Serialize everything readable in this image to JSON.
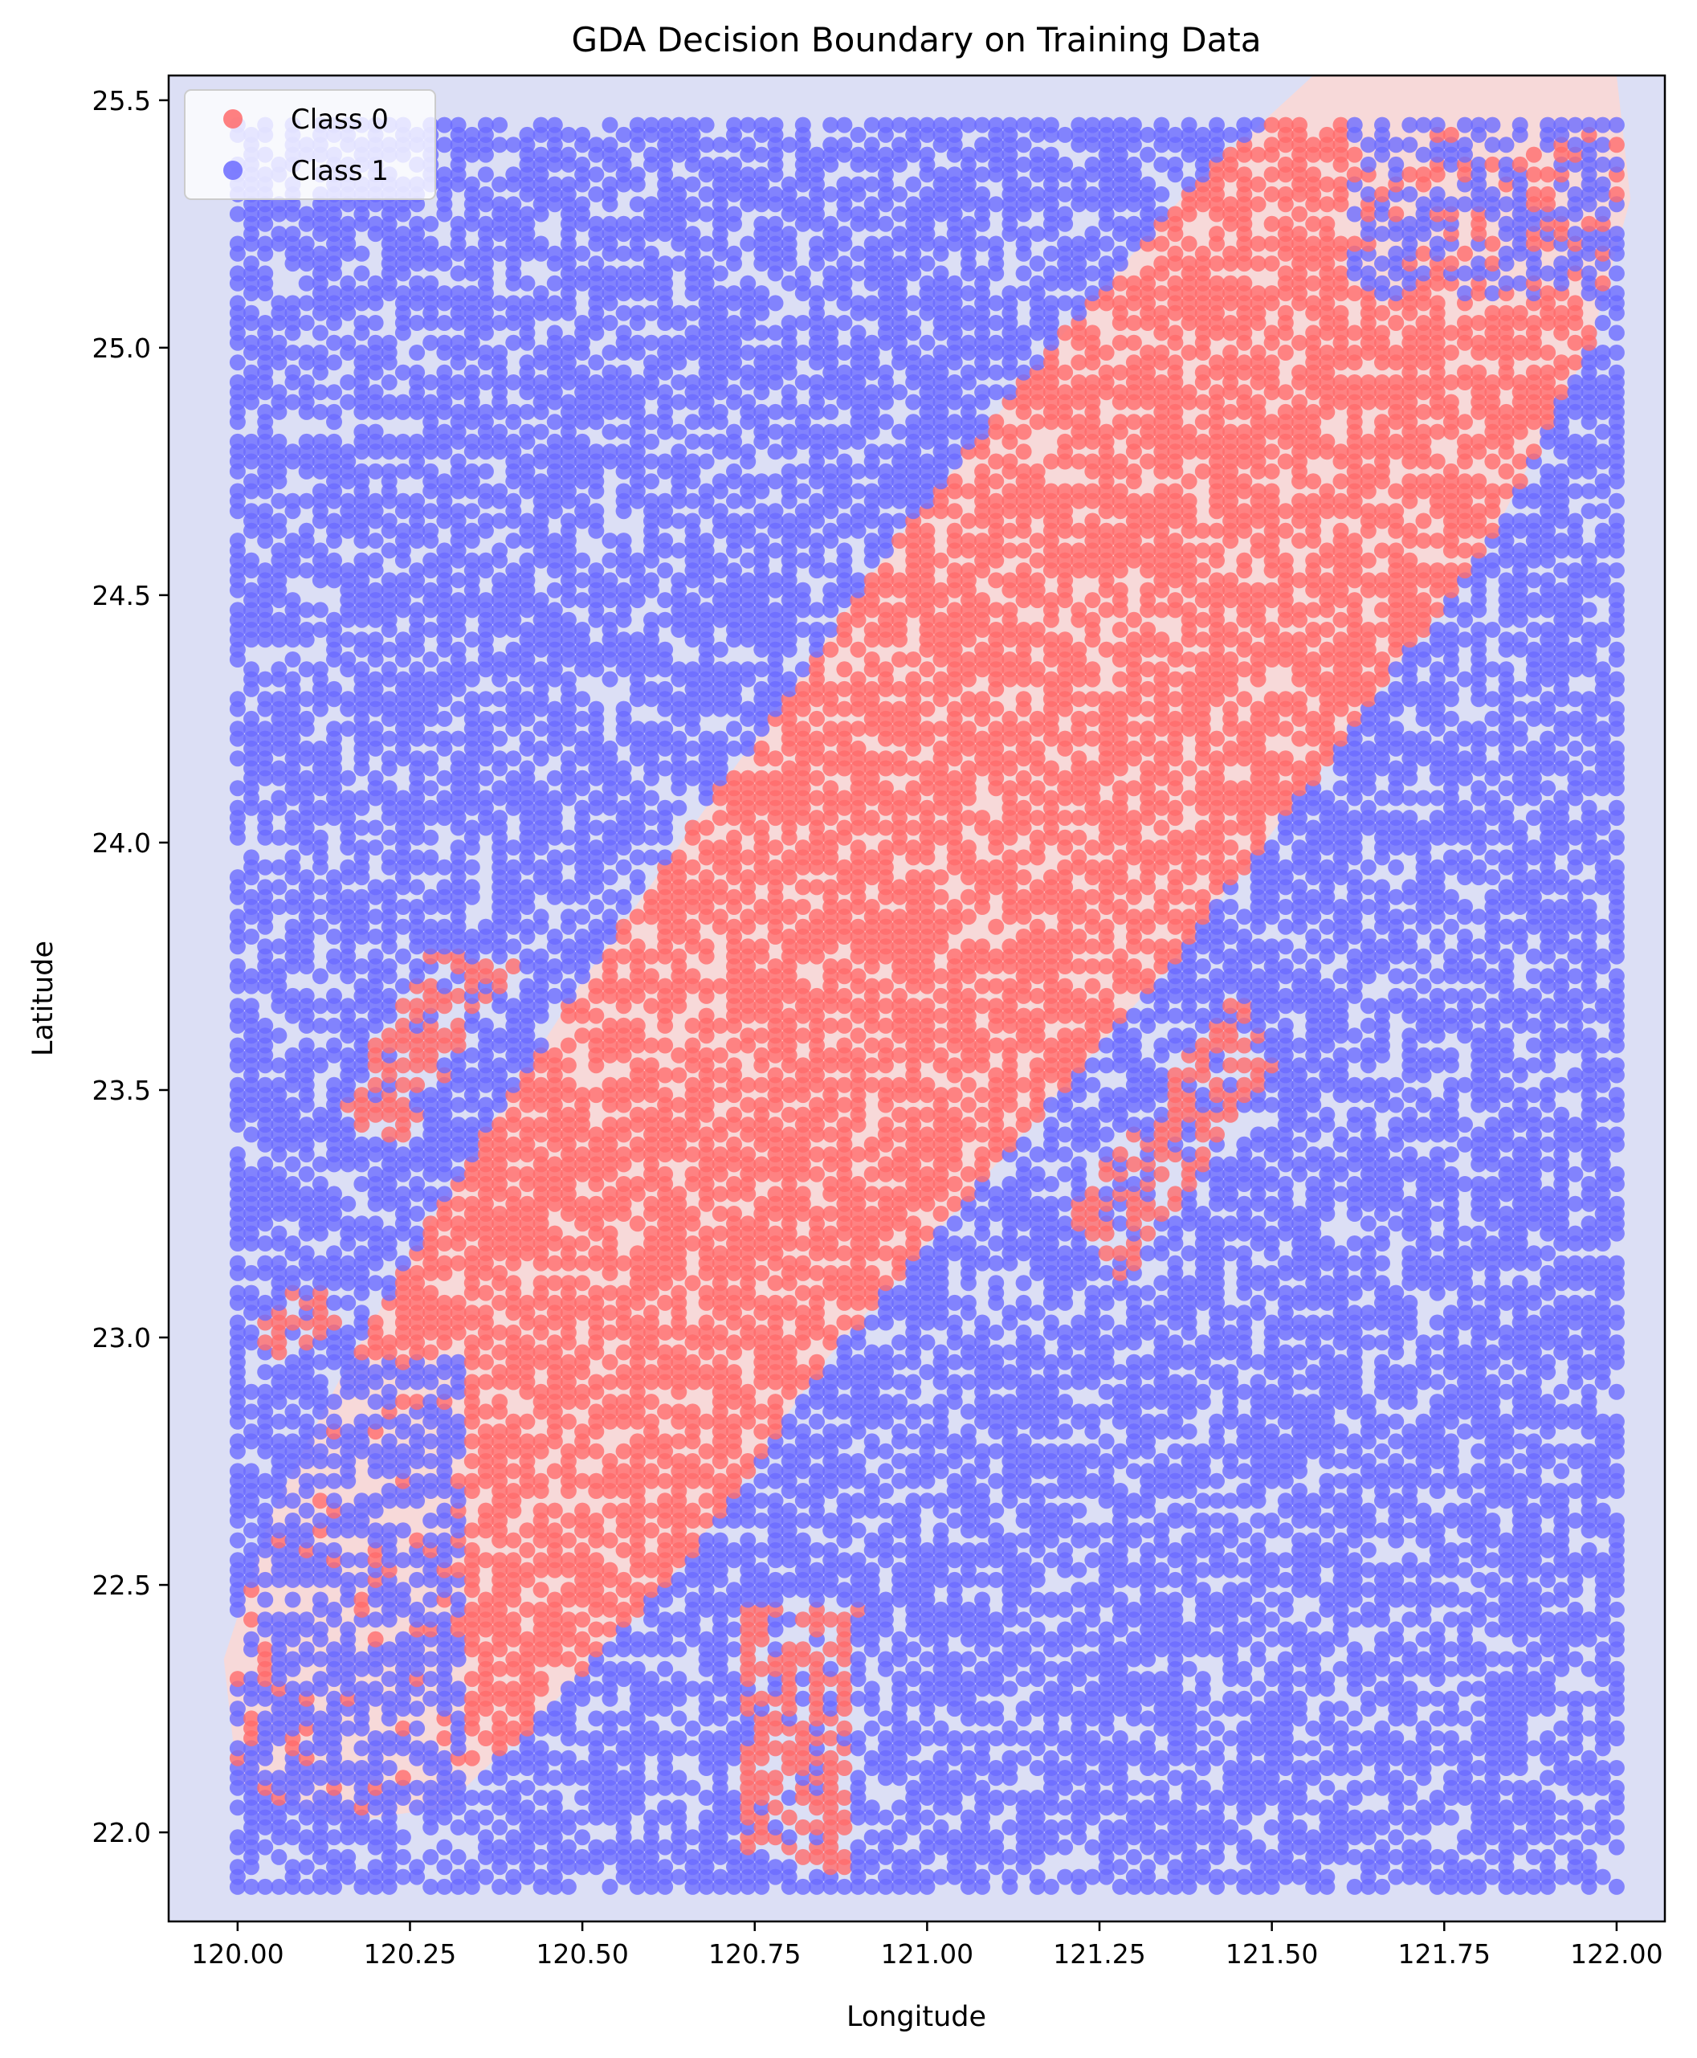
{
  "chart_data": {
    "type": "scatter",
    "title": "GDA Decision Boundary on Training Data",
    "xlabel": "Longitude",
    "ylabel": "Latitude",
    "xlim": [
      119.9,
      122.07
    ],
    "ylim": [
      21.82,
      25.55
    ],
    "xticks": [
      120.0,
      120.25,
      120.5,
      120.75,
      121.0,
      121.25,
      121.5,
      121.75,
      122.0
    ],
    "xtick_labels": [
      "120.00",
      "120.25",
      "120.50",
      "120.75",
      "121.00",
      "121.25",
      "121.50",
      "121.75",
      "122.00"
    ],
    "yticks": [
      22.0,
      22.5,
      23.0,
      23.5,
      24.0,
      24.5,
      25.0,
      25.5
    ],
    "ytick_labels": [
      "22.0",
      "22.5",
      "23.0",
      "23.5",
      "24.0",
      "24.5",
      "25.0",
      "25.5"
    ],
    "grid": false,
    "legend": {
      "placement": "upper-left",
      "entries": [
        "Class 0",
        "Class 1"
      ]
    },
    "colors": {
      "class0_point": "#ff6b6b",
      "class1_point": "#6b6bff",
      "class0_region": "#f7d9d9",
      "class1_region": "#dcdff5"
    },
    "decision_region": {
      "class0_region_polygon": [
        [
          121.56,
          25.55
        ],
        [
          122.0,
          25.55
        ],
        [
          122.02,
          25.3
        ],
        [
          121.96,
          25.0
        ],
        [
          121.82,
          24.62
        ],
        [
          121.6,
          24.2
        ],
        [
          121.35,
          23.75
        ],
        [
          121.1,
          23.35
        ],
        [
          120.85,
          22.95
        ],
        [
          120.65,
          22.55
        ],
        [
          120.45,
          22.25
        ],
        [
          120.3,
          22.05
        ],
        [
          120.15,
          22.02
        ],
        [
          120.0,
          22.1
        ],
        [
          119.98,
          22.35
        ],
        [
          120.05,
          22.65
        ],
        [
          120.15,
          22.92
        ],
        [
          120.3,
          23.28
        ],
        [
          120.5,
          23.72
        ],
        [
          120.72,
          24.15
        ],
        [
          120.95,
          24.6
        ],
        [
          121.18,
          25.0
        ],
        [
          121.38,
          25.32
        ]
      ]
    },
    "series": [
      {
        "name": "Class 0",
        "sampled": true,
        "generator": {
          "kind": "grid-jitter",
          "x_range": [
            120.0,
            122.0
          ],
          "y_range": [
            21.89,
            25.45
          ],
          "step": 0.02,
          "fill_ratio": 0.7,
          "seed": 7,
          "class0_island_polygons": [
            [
              [
                120.14,
                23.45
              ],
              [
                120.28,
                23.78
              ],
              [
                120.4,
                23.75
              ],
              [
                120.22,
                23.35
              ]
            ],
            [
              [
                120.02,
                23.0
              ],
              [
                120.1,
                23.12
              ],
              [
                120.16,
                23.05
              ],
              [
                120.08,
                22.95
              ]
            ],
            [
              [
                120.72,
                22.45
              ],
              [
                120.9,
                22.45
              ],
              [
                120.88,
                21.92
              ],
              [
                120.72,
                21.96
              ]
            ],
            [
              [
                121.2,
                23.25
              ],
              [
                121.45,
                23.7
              ],
              [
                121.5,
                23.55
              ],
              [
                121.28,
                23.1
              ]
            ]
          ]
        }
      },
      {
        "name": "Class 1",
        "sampled": true
      }
    ]
  }
}
